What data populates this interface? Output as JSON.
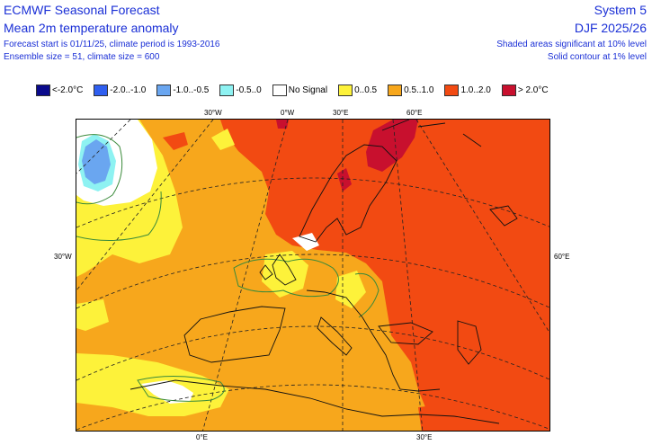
{
  "header": {
    "title": "ECMWF Seasonal Forecast",
    "subtitle": "Mean 2m temperature anomaly",
    "forecast_info": "Forecast start is 01/11/25, climate period is 1993-2016",
    "ensemble_info": "Ensemble size = 51, climate size = 600",
    "system": "System 5",
    "season": "DJF 2025/26",
    "significance_note": "Shaded areas significant at 10% level",
    "contour_note": "Solid contour at 1% level"
  },
  "legend": [
    {
      "label": "<-2.0°C",
      "color": "#0a0a8c"
    },
    {
      "label": "-2.0..-1.0",
      "color": "#2f5ff0"
    },
    {
      "label": "-1.0..-0.5",
      "color": "#6aa6f0"
    },
    {
      "label": "-0.5..0",
      "color": "#8ef2f2"
    },
    {
      "label": "No Signal",
      "color": "#ffffff"
    },
    {
      "label": "0..0.5",
      "color": "#fdf23a"
    },
    {
      "label": "0.5..1.0",
      "color": "#f7a71c"
    },
    {
      "label": "1.0..2.0",
      "color": "#f24a12"
    },
    {
      "label": "> 2.0°C",
      "color": "#c8102e"
    }
  ],
  "map_labels": {
    "top_30w": "30°W",
    "top_0w": "0°W",
    "top_30e": "30°E",
    "top_60e": "60°E",
    "left_30w": "30°W",
    "right_60e": "60°E",
    "bottom_0e": "0°E",
    "bottom_30e": "30°E"
  }
}
